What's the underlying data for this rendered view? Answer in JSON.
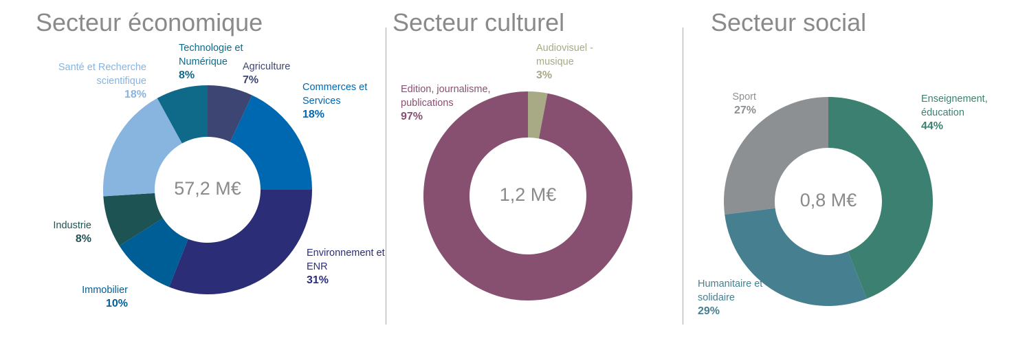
{
  "chart_data": [
    {
      "type": "donut",
      "title": "Secteur économique",
      "center_label": "57,2 M€",
      "categories": [
        "Agriculture",
        "Commerces et Services",
        "Environnement et ENR",
        "Immobilier",
        "Industrie",
        "Santé et Recherche scientifique",
        "Technologie et Numérique"
      ],
      "values": [
        7,
        18,
        31,
        10,
        8,
        18,
        8
      ],
      "value_labels": [
        "7%",
        "18%",
        "31%",
        "10%",
        "8%",
        "18%",
        "8%"
      ],
      "colors": [
        "#3d4673",
        "#0068b0",
        "#2b2e77",
        "#005e97",
        "#1e5353",
        "#88b4e0",
        "#0f6a8a"
      ]
    },
    {
      "type": "donut",
      "title": "Secteur culturel",
      "center_label": "1,2 M€",
      "categories": [
        "Audiovisuel - musique",
        "Edition, journalisme, publications"
      ],
      "values": [
        3,
        97
      ],
      "value_labels": [
        "3%",
        "97%"
      ],
      "colors": [
        "#a8a985",
        "#875070"
      ]
    },
    {
      "type": "donut",
      "title": "Secteur social",
      "center_label": "0,8 M€",
      "categories": [
        "Enseignement, éducation",
        "Humanitaire et solidaire",
        "Sport"
      ],
      "values": [
        44,
        29,
        27
      ],
      "value_labels": [
        "44%",
        "29%",
        "27%"
      ],
      "colors": [
        "#3b8070",
        "#457f90",
        "#8c9093"
      ]
    }
  ]
}
